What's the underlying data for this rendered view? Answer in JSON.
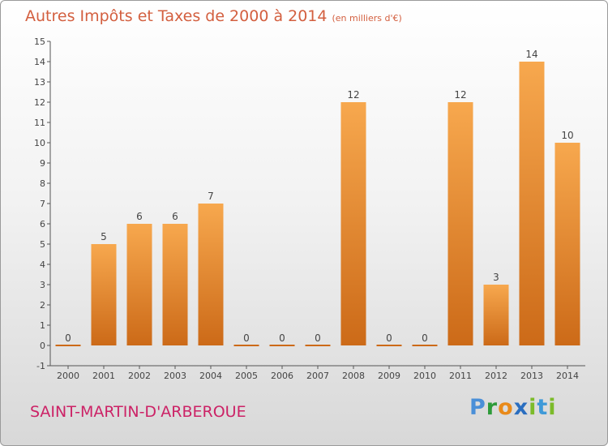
{
  "header": {
    "title": "Autres Impôts et Taxes de 2000 à 2014",
    "unit": "(en milliers d'€)"
  },
  "footer": {
    "commune": "SAINT-MARTIN-D'ARBEROUE",
    "logo": {
      "p": "P",
      "r": "r",
      "o": "o",
      "x": "x",
      "i": "i",
      "t": "t",
      "i2": "i"
    }
  },
  "colors": {
    "bar_light": "#f7a84e",
    "bar_dark": "#cc6a18",
    "title": "#d35f3f",
    "commune": "#cc2266"
  },
  "chart_data": {
    "type": "bar",
    "title": "Autres Impôts et Taxes de 2000 à 2014",
    "subtitle": "(en milliers d'€)",
    "categories": [
      "2000",
      "2001",
      "2002",
      "2003",
      "2004",
      "2005",
      "2006",
      "2007",
      "2008",
      "2009",
      "2010",
      "2011",
      "2012",
      "2013",
      "2014"
    ],
    "values": [
      0,
      5,
      6,
      6,
      7,
      0,
      0,
      0,
      12,
      0,
      0,
      12,
      3,
      14,
      10
    ],
    "ylim": [
      -1,
      15
    ],
    "yticks": [
      -1,
      0,
      1,
      2,
      3,
      4,
      5,
      6,
      7,
      8,
      9,
      10,
      11,
      12,
      13,
      14,
      15
    ],
    "grid": false,
    "legend": "none"
  }
}
